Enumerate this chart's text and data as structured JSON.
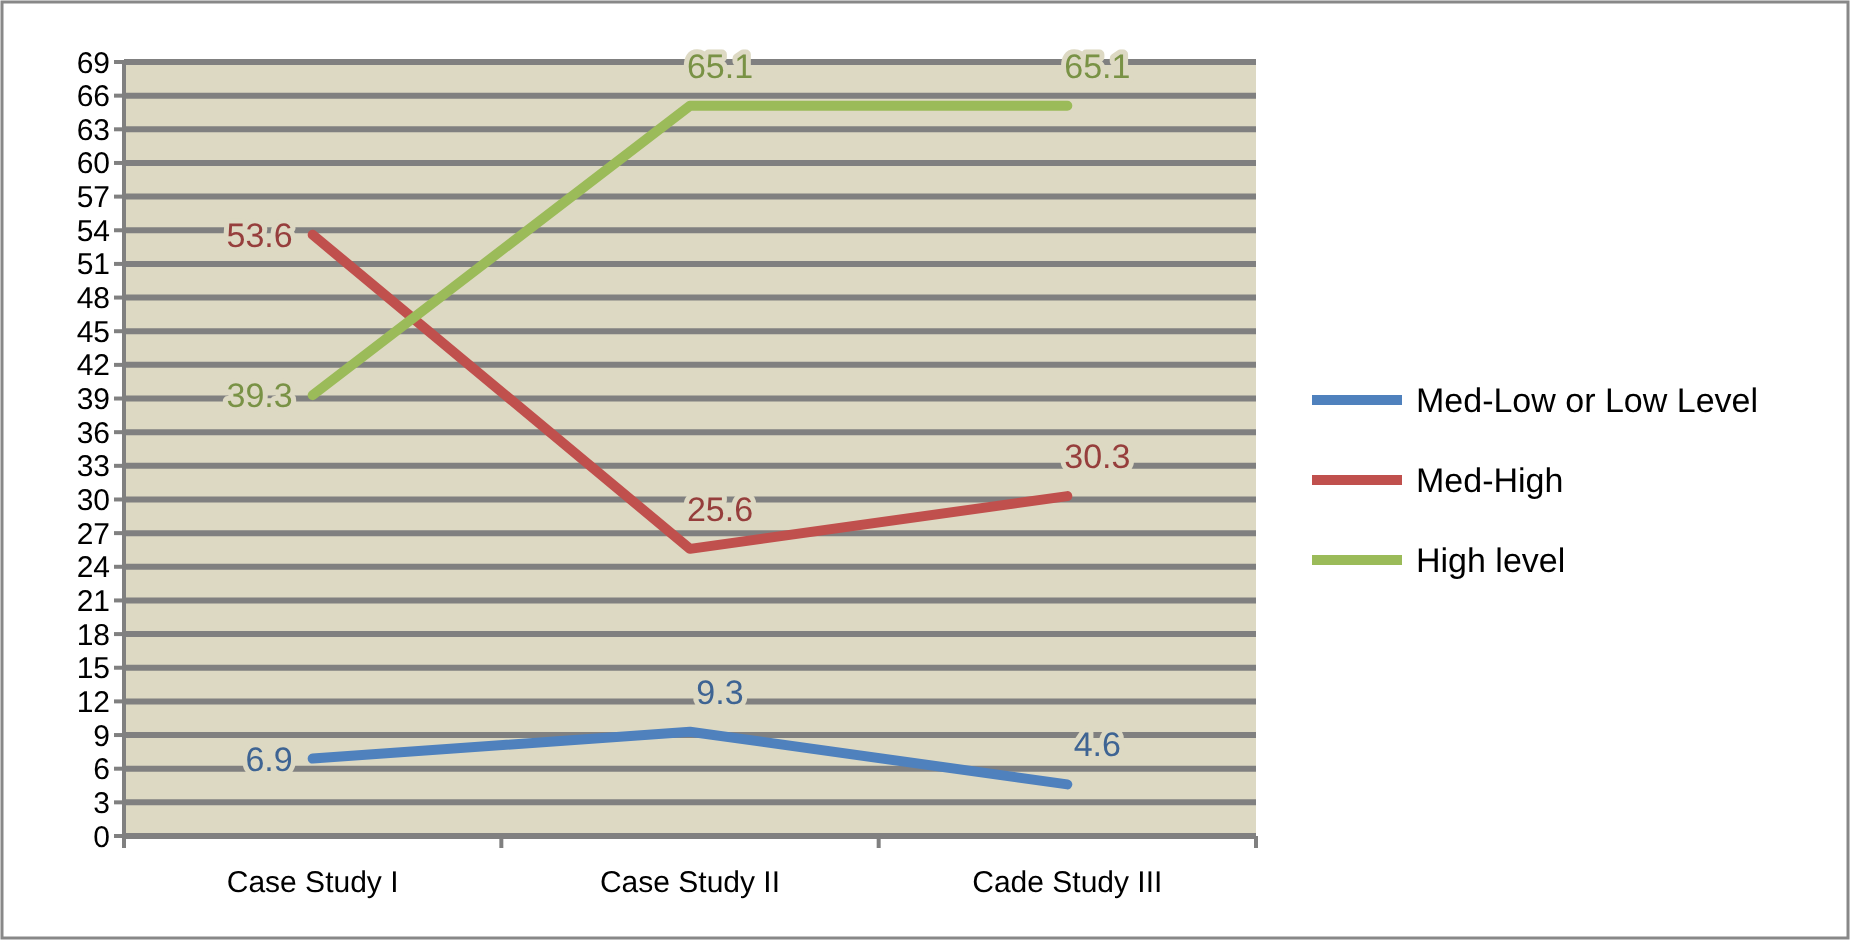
{
  "chart_data": {
    "type": "line",
    "categories": [
      "Case Study I",
      "Case Study II",
      "Cade Study III"
    ],
    "series": [
      {
        "name": "Med-Low or Low Level",
        "color": "#4f81bd",
        "values": [
          6.9,
          9.3,
          4.6
        ]
      },
      {
        "name": "Med-High",
        "color": "#c0504d",
        "values": [
          53.6,
          25.6,
          30.3
        ]
      },
      {
        "name": "High level",
        "color": "#9bbb59",
        "values": [
          39.3,
          65.1,
          65.1
        ]
      }
    ],
    "ylim": [
      0,
      69
    ],
    "yticks": [
      0,
      3,
      6,
      9,
      12,
      15,
      18,
      21,
      24,
      27,
      30,
      33,
      36,
      39,
      42,
      45,
      48,
      51,
      54,
      57,
      60,
      63,
      66,
      69
    ],
    "grid": "y",
    "legend": "right",
    "data_labels": true,
    "marker": "none",
    "line_style": "solid"
  }
}
